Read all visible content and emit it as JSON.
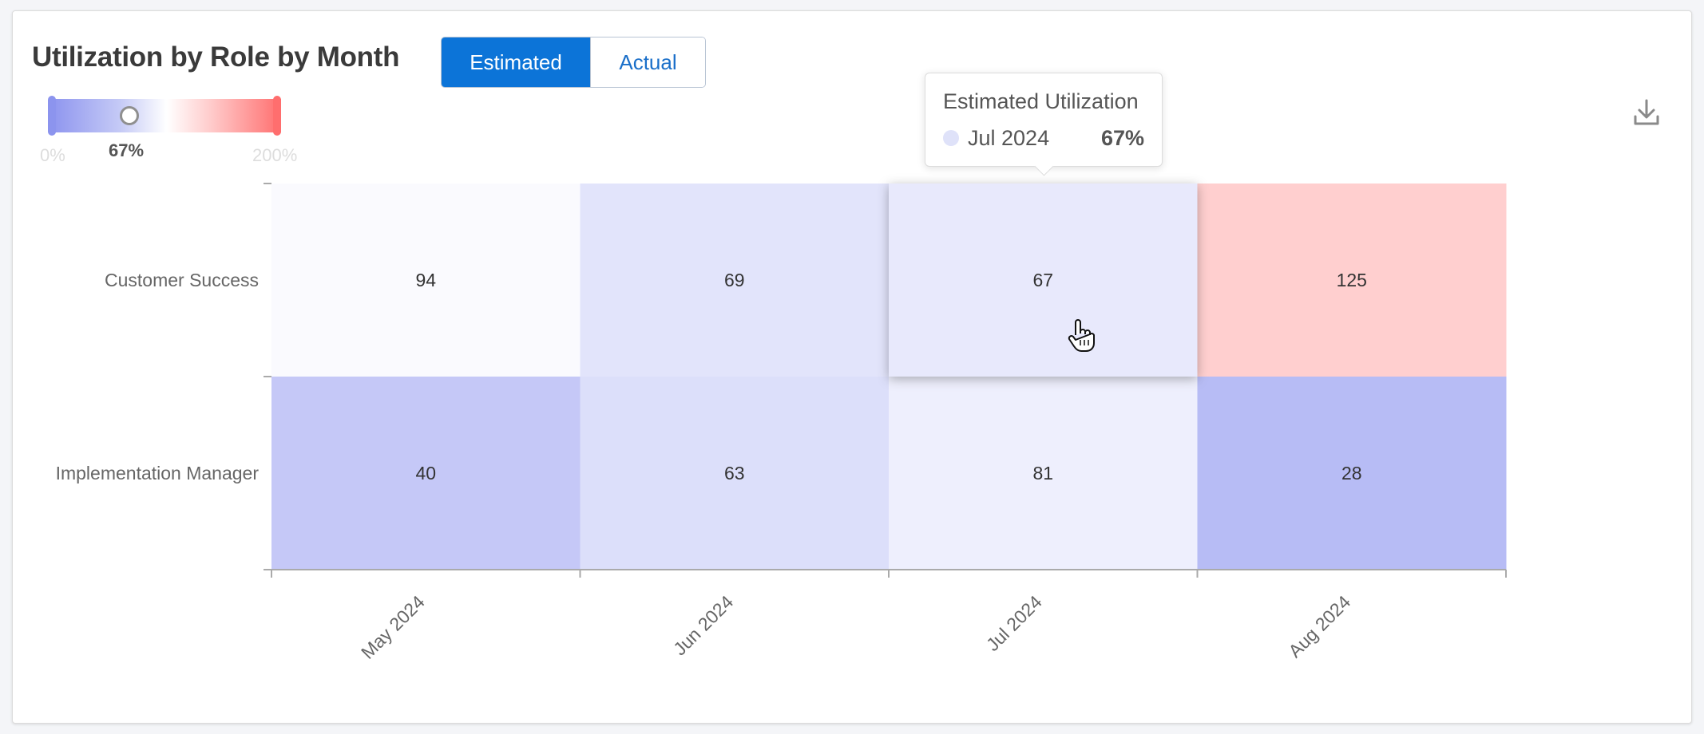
{
  "title": "Utilization by Role by Month",
  "toggle": {
    "estimated_label": "Estimated",
    "actual_label": "Actual",
    "selected": "Estimated"
  },
  "legend": {
    "min_label": "0%",
    "max_label": "200%",
    "current_label": "67%",
    "current_value": 0.335
  },
  "tooltip": {
    "title": "Estimated Utilization",
    "label": "Jul 2024",
    "value": "67%"
  },
  "icons": {
    "download": "download-icon",
    "cursor": "pointer-hand-icon"
  },
  "colors": {
    "low": "#8f96ef",
    "mid": "#ffffff",
    "high": "#ff6f6f",
    "accent": "#0c74d8"
  },
  "chart_data": {
    "type": "heatmap",
    "title": "Utilization by Role by Month",
    "x": [
      "May 2024",
      "Jun 2024",
      "Jul 2024",
      "Aug 2024"
    ],
    "y": [
      "Customer Success",
      "Implementation Manager"
    ],
    "values": [
      [
        94,
        69,
        67,
        125
      ],
      [
        40,
        63,
        81,
        28
      ]
    ],
    "color_range": [
      0,
      200
    ],
    "highlight": {
      "row": 0,
      "col": 2
    }
  }
}
